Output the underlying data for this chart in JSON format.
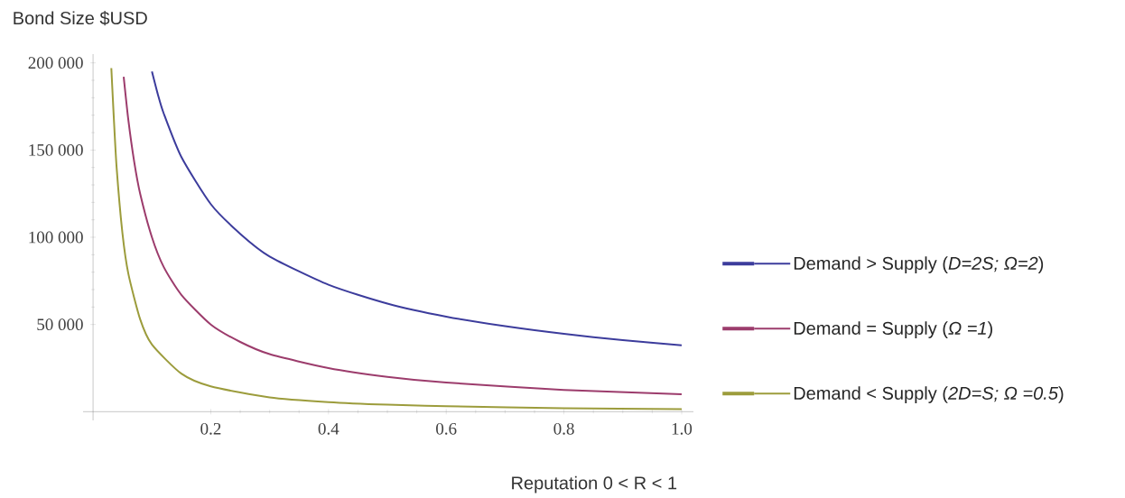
{
  "chart_data": {
    "type": "line",
    "xlabel": "Reputation 0 < R < 1",
    "ylabel": "Bond Size $USD",
    "xlim": [
      -0.017,
      1.02
    ],
    "ylim": [
      -5000,
      205000
    ],
    "xticks": [
      0.2,
      0.4,
      0.6,
      0.8,
      {
        "value": 1.0,
        "label": "1.0"
      }
    ],
    "yticks": [
      {
        "value": 50000,
        "label": "50 000"
      },
      {
        "value": 100000,
        "label": "100 000"
      },
      {
        "value": 150000,
        "label": "150 000"
      },
      {
        "value": 200000,
        "label": "200 000"
      }
    ],
    "legend": "right",
    "marker": "none",
    "line_style": "solid",
    "series": [
      {
        "name": "Demand > Supply (*D=2S; Ω=2*)",
        "color": "#3c3c9c",
        "x": [
          0.1,
          0.11,
          0.12,
          0.15,
          0.2,
          0.25,
          0.3,
          0.4,
          0.5,
          0.6,
          0.7,
          0.8,
          0.9,
          1.0
        ],
        "values": [
          195000,
          182000,
          171000,
          146000,
          119000,
          102000,
          89000,
          72800,
          62000,
          54500,
          49000,
          44600,
          41000,
          38000
        ]
      },
      {
        "name": "Demand = Supply (*Ω =1*)",
        "color": "#9c3c6c",
        "x": [
          0.052,
          0.06,
          0.07,
          0.08,
          0.1,
          0.12,
          0.15,
          0.2,
          0.25,
          0.3,
          0.4,
          0.5,
          0.6,
          0.8,
          1.0
        ],
        "values": [
          192000,
          167000,
          143000,
          125000,
          100000,
          83000,
          67000,
          50000,
          40000,
          33000,
          25000,
          20000,
          16700,
          12500,
          10000
        ]
      },
      {
        "name": "Demand < Supply (*2D=S; Ω =0.5*)",
        "color": "#9c9c3c",
        "x": [
          0.031,
          0.035,
          0.04,
          0.05,
          0.06,
          0.08,
          0.1,
          0.15,
          0.2,
          0.3,
          0.4,
          0.5,
          0.6,
          0.8,
          1.0
        ],
        "values": [
          197000,
          170000,
          140000,
          102000,
          79000,
          53000,
          38500,
          21800,
          14500,
          8200,
          5500,
          4000,
          3100,
          2000,
          1500
        ]
      }
    ]
  }
}
